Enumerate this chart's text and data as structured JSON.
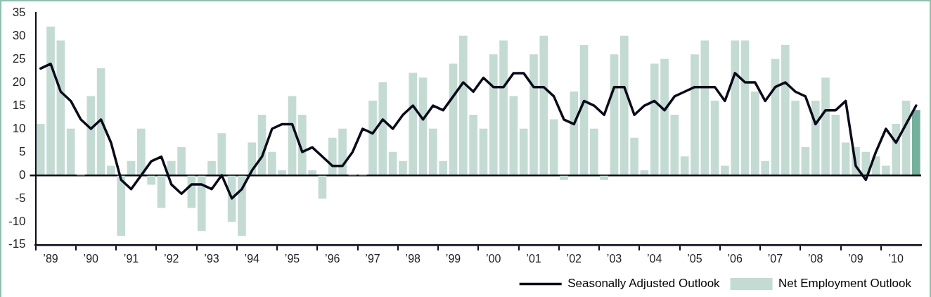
{
  "chart_data": {
    "type": "bar",
    "categories": [
      null,
      "’89",
      null,
      null,
      null,
      "’90",
      null,
      null,
      null,
      "’91",
      null,
      null,
      null,
      "’92",
      null,
      null,
      null,
      "’93",
      null,
      null,
      null,
      "’94",
      null,
      null,
      null,
      "’95",
      null,
      null,
      null,
      "’96",
      null,
      null,
      null,
      "’97",
      null,
      null,
      null,
      "’98",
      null,
      null,
      null,
      "’99",
      null,
      null,
      null,
      "’00",
      null,
      null,
      null,
      "’01",
      null,
      null,
      null,
      "’02",
      null,
      null,
      null,
      "’03",
      null,
      null,
      null,
      "’04",
      null,
      null,
      null,
      "’05",
      null,
      null,
      null,
      "’06",
      null,
      null,
      null,
      "’07",
      null,
      null,
      null,
      "’08",
      null,
      null,
      null,
      "’09",
      null,
      null,
      null,
      "’10",
      null,
      null
    ],
    "series": [
      {
        "name": "Seasonally Adjusted Outlook",
        "type": "line",
        "color": "#0a0a1a",
        "values": [
          23,
          24,
          18,
          16,
          12,
          10,
          12,
          7,
          -1,
          -3,
          0,
          3,
          4,
          -2,
          -4,
          -2,
          -2,
          -3,
          0,
          -5,
          -3,
          1,
          4,
          10,
          11,
          11,
          5,
          6,
          4,
          2,
          2,
          5,
          10,
          9,
          12,
          10,
          13,
          15,
          12,
          15,
          14,
          17,
          20,
          18,
          21,
          19,
          19,
          22,
          22,
          19,
          19,
          17,
          12,
          11,
          16,
          15,
          13,
          19,
          19,
          13,
          15,
          16,
          14,
          17,
          18,
          19,
          19,
          19,
          16,
          22,
          20,
          20,
          16,
          19,
          20,
          18,
          17,
          11,
          14,
          14,
          16,
          2,
          -1,
          5,
          10,
          7,
          11,
          15
        ]
      },
      {
        "name": "Net Employment Outlook",
        "color": "#c4dbd3",
        "colors": [
          "#c4dbd3",
          "#c4dbd3",
          "#c4dbd3",
          "#c4dbd3",
          "#c4dbd3",
          "#c4dbd3",
          "#c4dbd3",
          "#c4dbd3",
          "#c4dbd3",
          "#c4dbd3",
          "#c4dbd3",
          "#c4dbd3",
          "#c4dbd3",
          "#c4dbd3",
          "#c4dbd3",
          "#c4dbd3",
          "#c4dbd3",
          "#c4dbd3",
          "#c4dbd3",
          "#c4dbd3",
          "#c4dbd3",
          "#c4dbd3",
          "#c4dbd3",
          "#c4dbd3",
          "#c4dbd3",
          "#c4dbd3",
          "#c4dbd3",
          "#c4dbd3",
          "#c4dbd3",
          "#c4dbd3",
          "#c4dbd3",
          "#c4dbd3",
          "#c4dbd3",
          "#c4dbd3",
          "#c4dbd3",
          "#c4dbd3",
          "#c4dbd3",
          "#c4dbd3",
          "#c4dbd3",
          "#c4dbd3",
          "#c4dbd3",
          "#c4dbd3",
          "#c4dbd3",
          "#c4dbd3",
          "#c4dbd3",
          "#c4dbd3",
          "#c4dbd3",
          "#c4dbd3",
          "#c4dbd3",
          "#c4dbd3",
          "#c4dbd3",
          "#c4dbd3",
          "#c4dbd3",
          "#c4dbd3",
          "#c4dbd3",
          "#c4dbd3",
          "#c4dbd3",
          "#c4dbd3",
          "#c4dbd3",
          "#c4dbd3",
          "#c4dbd3",
          "#c4dbd3",
          "#c4dbd3",
          "#c4dbd3",
          "#c4dbd3",
          "#c4dbd3",
          "#c4dbd3",
          "#c4dbd3",
          "#c4dbd3",
          "#c4dbd3",
          "#c4dbd3",
          "#c4dbd3",
          "#c4dbd3",
          "#c4dbd3",
          "#c4dbd3",
          "#c4dbd3",
          "#c4dbd3",
          "#c4dbd3",
          "#c4dbd3",
          "#c4dbd3",
          "#c4dbd3",
          "#c4dbd3",
          "#c4dbd3",
          "#c4dbd3",
          "#c4dbd3",
          "#c4dbd3",
          "#c4dbd3",
          "#74b09c"
        ],
        "values": [
          11,
          32,
          29,
          10,
          0,
          17,
          23,
          2,
          -13,
          3,
          10,
          -2,
          -7,
          3,
          6,
          -7,
          -12,
          3,
          9,
          -10,
          -13,
          7,
          13,
          5,
          1,
          17,
          13,
          1,
          -5,
          8,
          10,
          0,
          0,
          16,
          20,
          5,
          3,
          22,
          21,
          10,
          3,
          24,
          30,
          13,
          10,
          26,
          29,
          17,
          10,
          26,
          30,
          12,
          -1,
          18,
          28,
          10,
          -1,
          26,
          30,
          8,
          1,
          24,
          25,
          13,
          4,
          26,
          29,
          16,
          2,
          29,
          29,
          18,
          3,
          25,
          28,
          16,
          6,
          16,
          21,
          13,
          7,
          6,
          5,
          4,
          2,
          11,
          16,
          14
        ]
      }
    ],
    "ylim": [
      -15,
      35
    ],
    "yticks": [
      -15,
      -10,
      -5,
      0,
      5,
      10,
      15,
      20,
      25,
      30,
      35
    ],
    "legend": "bottom right"
  }
}
